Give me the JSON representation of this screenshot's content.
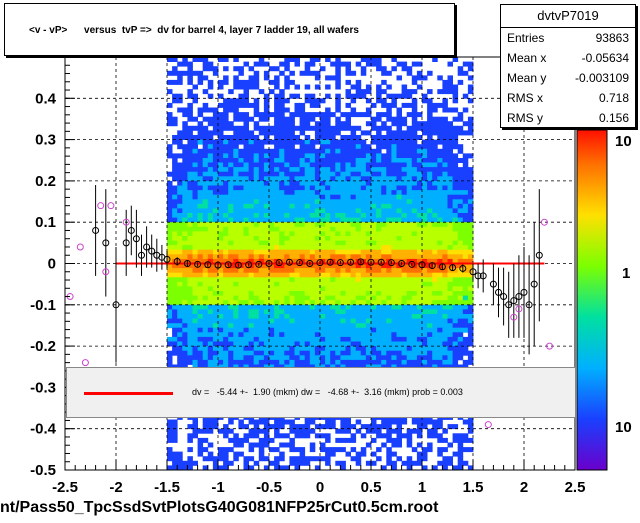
{
  "title": "<v - vP>      versus  tvP =>  dv for barrel 4, layer 7 ladder 19, all wafers",
  "stats": {
    "name": "dvtvP7019",
    "rows": [
      {
        "key": "Entries",
        "value": "93863"
      },
      {
        "key": "Mean x",
        "value": "-0.05634"
      },
      {
        "key": "Mean y",
        "value": "-0.003109"
      },
      {
        "key": "RMS x",
        "value": "0.718"
      },
      {
        "key": "RMS y",
        "value": "0.156"
      }
    ]
  },
  "fit_text": "dv =   -5.44 +-  1.90 (mkm) dw =   -4.68 +-  3.16 (mkm) prob = 0.003",
  "footer": "nt/Pass50_TpcSsdSvtPlotsG40G081NFP25rCut0.5cm.root",
  "colors": {
    "fit_line": "#ff0000",
    "profile_marker": "#000000",
    "outlier_marker": "#cc44cc"
  },
  "chart_data": {
    "type": "heatmap",
    "title": "<v - vP>      versus  tvP =>  dv for barrel 4, layer 7 ladder 19, all wafers",
    "xlim": [
      -2.5,
      2.5
    ],
    "ylim": [
      -0.5,
      0.5
    ],
    "x_ticks": [
      -2.5,
      -2,
      -1.5,
      -1,
      -0.5,
      0,
      0.5,
      1,
      1.5,
      2,
      2.5
    ],
    "x_tick_labels": [
      "-2.5",
      "-2",
      "-1.5",
      "-1",
      "-0.5",
      "0",
      "0.5",
      "1",
      "1.5",
      "2",
      "2.5"
    ],
    "y_ticks": [
      -0.5,
      -0.4,
      -0.3,
      -0.2,
      -0.1,
      0,
      0.1,
      0.2,
      0.3,
      0.4
    ],
    "y_tick_labels": [
      "-0.5",
      "-0.4",
      "-0.3",
      "-0.2",
      "-0.1",
      "0",
      "0.1",
      "0.2",
      "0.3",
      "0.4"
    ],
    "grid": true,
    "colorbar": {
      "scale": "log",
      "labels": [
        "10",
        "1",
        "10"
      ]
    },
    "density_band": {
      "x_range": [
        -1.5,
        1.5
      ],
      "core_y_range": [
        -0.02,
        0.02
      ]
    },
    "fit_line": {
      "x": [
        -2.0,
        2.2
      ],
      "y": [
        0.0,
        0.0
      ]
    },
    "profile_points": [
      {
        "x": -2.2,
        "y": 0.08,
        "err": 0.11
      },
      {
        "x": -2.1,
        "y": 0.05,
        "err": 0.13
      },
      {
        "x": -2.0,
        "y": -0.1,
        "err": 0.14
      },
      {
        "x": -1.9,
        "y": 0.05,
        "err": 0.08
      },
      {
        "x": -1.85,
        "y": 0.08,
        "err": 0.06
      },
      {
        "x": -1.8,
        "y": 0.06,
        "err": 0.07
      },
      {
        "x": -1.75,
        "y": 0.02,
        "err": 0.05
      },
      {
        "x": -1.7,
        "y": 0.04,
        "err": 0.05
      },
      {
        "x": -1.65,
        "y": 0.03,
        "err": 0.04
      },
      {
        "x": -1.6,
        "y": 0.02,
        "err": 0.04
      },
      {
        "x": -1.55,
        "y": 0.015,
        "err": 0.03
      },
      {
        "x": -1.5,
        "y": 0.01,
        "err": 0.02
      },
      {
        "x": -1.4,
        "y": 0.005,
        "err": 0.01
      },
      {
        "x": -1.3,
        "y": 0.0,
        "err": 0.006
      },
      {
        "x": -1.2,
        "y": -0.002,
        "err": 0.005
      },
      {
        "x": -1.1,
        "y": -0.003,
        "err": 0.005
      },
      {
        "x": -1.0,
        "y": -0.004,
        "err": 0.005
      },
      {
        "x": -0.9,
        "y": -0.003,
        "err": 0.004
      },
      {
        "x": -0.8,
        "y": -0.004,
        "err": 0.004
      },
      {
        "x": -0.7,
        "y": -0.003,
        "err": 0.004
      },
      {
        "x": -0.6,
        "y": -0.002,
        "err": 0.004
      },
      {
        "x": -0.5,
        "y": 0.0,
        "err": 0.004
      },
      {
        "x": -0.4,
        "y": 0.002,
        "err": 0.004
      },
      {
        "x": -0.3,
        "y": 0.003,
        "err": 0.004
      },
      {
        "x": -0.2,
        "y": 0.002,
        "err": 0.004
      },
      {
        "x": -0.1,
        "y": 0.0,
        "err": 0.004
      },
      {
        "x": 0.0,
        "y": 0.002,
        "err": 0.004
      },
      {
        "x": 0.1,
        "y": 0.003,
        "err": 0.004
      },
      {
        "x": 0.2,
        "y": 0.002,
        "err": 0.004
      },
      {
        "x": 0.3,
        "y": 0.003,
        "err": 0.004
      },
      {
        "x": 0.4,
        "y": 0.004,
        "err": 0.004
      },
      {
        "x": 0.5,
        "y": 0.003,
        "err": 0.004
      },
      {
        "x": 0.6,
        "y": 0.003,
        "err": 0.004
      },
      {
        "x": 0.7,
        "y": 0.002,
        "err": 0.004
      },
      {
        "x": 0.8,
        "y": 0.0,
        "err": 0.004
      },
      {
        "x": 0.9,
        "y": -0.002,
        "err": 0.004
      },
      {
        "x": 1.0,
        "y": -0.003,
        "err": 0.005
      },
      {
        "x": 1.1,
        "y": -0.005,
        "err": 0.005
      },
      {
        "x": 1.2,
        "y": -0.008,
        "err": 0.006
      },
      {
        "x": 1.3,
        "y": -0.01,
        "err": 0.008
      },
      {
        "x": 1.4,
        "y": -0.012,
        "err": 0.01
      },
      {
        "x": 1.5,
        "y": -0.02,
        "err": 0.02
      },
      {
        "x": 1.55,
        "y": -0.03,
        "err": 0.03
      },
      {
        "x": 1.6,
        "y": -0.03,
        "err": 0.04
      },
      {
        "x": 1.7,
        "y": -0.05,
        "err": 0.05
      },
      {
        "x": 1.75,
        "y": -0.07,
        "err": 0.06
      },
      {
        "x": 1.8,
        "y": -0.08,
        "err": 0.07
      },
      {
        "x": 1.85,
        "y": -0.1,
        "err": 0.08
      },
      {
        "x": 1.9,
        "y": -0.09,
        "err": 0.09
      },
      {
        "x": 1.95,
        "y": -0.08,
        "err": 0.1
      },
      {
        "x": 2.0,
        "y": -0.07,
        "err": 0.11
      },
      {
        "x": 2.05,
        "y": -0.1,
        "err": 0.12
      },
      {
        "x": 2.1,
        "y": -0.05,
        "err": 0.15
      },
      {
        "x": 2.15,
        "y": 0.02,
        "err": 0.16
      }
    ],
    "outlier_points": [
      {
        "x": -2.45,
        "y": -0.08
      },
      {
        "x": -2.35,
        "y": 0.04
      },
      {
        "x": -2.3,
        "y": -0.24
      },
      {
        "x": -2.15,
        "y": 0.14
      },
      {
        "x": -2.05,
        "y": 0.14
      },
      {
        "x": -2.1,
        "y": -0.02
      },
      {
        "x": -1.9,
        "y": 0.1
      },
      {
        "x": 2.2,
        "y": 0.1
      },
      {
        "x": 2.25,
        "y": -0.2
      },
      {
        "x": 1.9,
        "y": -0.13
      },
      {
        "x": 1.95,
        "y": -0.11
      },
      {
        "x": 1.65,
        "y": -0.39
      }
    ]
  }
}
